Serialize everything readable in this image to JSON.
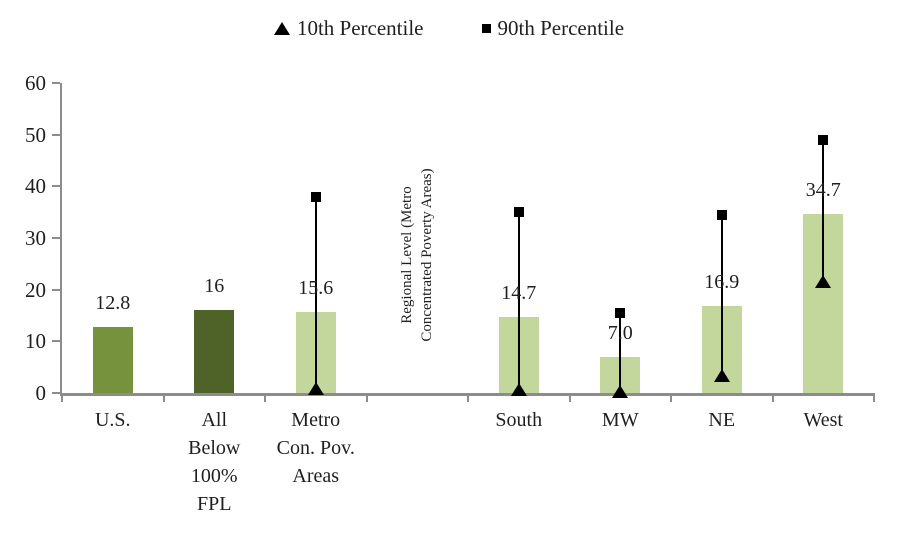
{
  "chart_data": {
    "type": "bar",
    "title": "",
    "xlabel": "",
    "ylabel": "",
    "ylim": [
      0,
      60
    ],
    "yticks": [
      0,
      10,
      20,
      30,
      40,
      50,
      60
    ],
    "grid": false,
    "legend_position": "top-center",
    "legend": [
      {
        "marker": "triangle-marker-icon",
        "label": "10th Percentile"
      },
      {
        "marker": "square-marker-icon",
        "label": "90th Percentile"
      }
    ],
    "categories": [
      "U.S.",
      "All Below 100% FPL",
      "Metro Con. Pov. Areas",
      "South",
      "MW",
      "NE",
      "West"
    ],
    "values": [
      12.8,
      16,
      15.6,
      14.7,
      7.0,
      16.9,
      34.7
    ],
    "percentile_10": [
      null,
      null,
      0.8,
      0.5,
      0.2,
      3.2,
      21.5
    ],
    "percentile_90": [
      null,
      null,
      38,
      35,
      15.5,
      34.4,
      49
    ],
    "separator_label": "Regional Level (Metro Concentrated Poverty Areas)",
    "separator_label_lines": [
      "Regional Level (Metro",
      "Concentrated Poverty Areas)"
    ],
    "colors": {
      "bar_medium": "#76923C",
      "bar_dark": "#4F6228",
      "bar_light": "#C3D69B",
      "axis": "#8c8c8c",
      "marker": "#000000",
      "text": "#1f1f1f"
    },
    "slots": [
      {
        "type": "bar",
        "category_lines": [
          "U.S."
        ],
        "value": 12.8,
        "label": "12.8",
        "color": "bar_medium"
      },
      {
        "type": "bar",
        "category_lines": [
          "All",
          "Below",
          "100%",
          "FPL"
        ],
        "value": 16,
        "label": "16",
        "color": "bar_dark"
      },
      {
        "type": "bar",
        "category_lines": [
          "Metro",
          "Con. Pov.",
          "Areas"
        ],
        "value": 15.6,
        "label": "15.6",
        "color": "bar_light",
        "p10": 0.8,
        "p90": 38
      },
      {
        "type": "separator"
      },
      {
        "type": "bar",
        "category_lines": [
          "South"
        ],
        "value": 14.7,
        "label": "14.7",
        "color": "bar_light",
        "p10": 0.5,
        "p90": 35
      },
      {
        "type": "bar",
        "category_lines": [
          "MW"
        ],
        "value": 7.0,
        "label": "7.0",
        "color": "bar_light",
        "p10": 0.2,
        "p90": 15.5
      },
      {
        "type": "bar",
        "category_lines": [
          "NE"
        ],
        "value": 16.9,
        "label": "16.9",
        "color": "bar_light",
        "p10": 3.2,
        "p90": 34.4
      },
      {
        "type": "bar",
        "category_lines": [
          "West"
        ],
        "value": 34.7,
        "label": "34.7",
        "color": "bar_light",
        "p10": 21.5,
        "p90": 49
      }
    ]
  }
}
